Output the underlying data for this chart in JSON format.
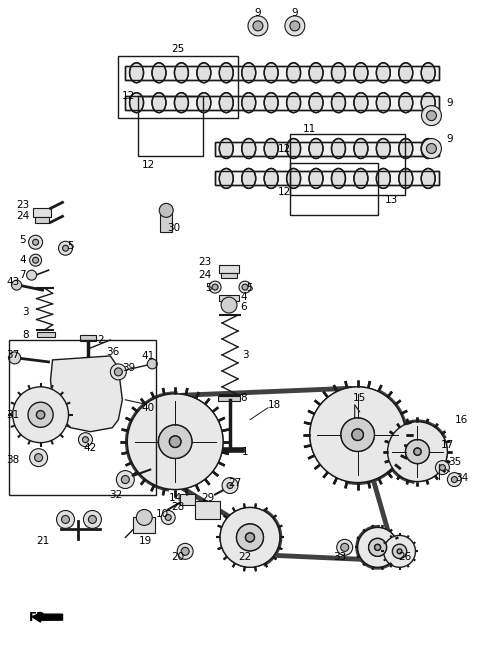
{
  "bg_color": "#ffffff",
  "line_color": "#1a1a1a",
  "fig_width": 4.8,
  "fig_height": 6.56,
  "dpi": 100
}
